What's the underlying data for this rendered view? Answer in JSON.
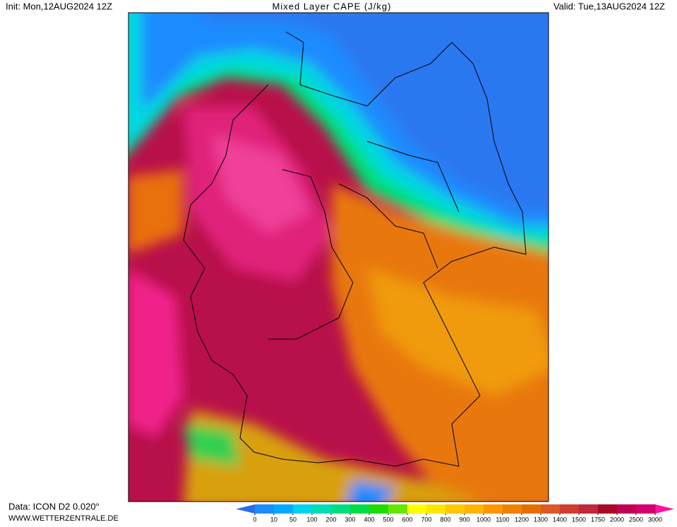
{
  "header": {
    "init": "Init: Mon,12AUG2024 12Z",
    "title": "Mixed Layer CAPE (J/kg)",
    "valid": "Valid: Tue,13AUG2024 12Z"
  },
  "footer": {
    "data": "Data: ICON D2 0.020°",
    "source": "WWW.WETTERZENTRALE.DE"
  },
  "legend": {
    "ticks": [
      0,
      10,
      50,
      100,
      200,
      300,
      400,
      500,
      600,
      700,
      800,
      900,
      1000,
      1100,
      1200,
      1300,
      1400,
      1500,
      1750,
      2000,
      2500,
      3000
    ],
    "below_color": "#2a6ee6",
    "colors": [
      "#1e8cff",
      "#00aaff",
      "#00d2ee",
      "#00dcb4",
      "#00dc82",
      "#00dc46",
      "#1edc00",
      "#64e600",
      "#ffff00",
      "#ffe600",
      "#ffc800",
      "#ffb400",
      "#ff9600",
      "#f08200",
      "#e66e00",
      "#dc5a28",
      "#d23c32",
      "#c0283c",
      "#aa0a28",
      "#c00050",
      "#d2006e"
    ],
    "above_color": "#ff14a0"
  }
}
